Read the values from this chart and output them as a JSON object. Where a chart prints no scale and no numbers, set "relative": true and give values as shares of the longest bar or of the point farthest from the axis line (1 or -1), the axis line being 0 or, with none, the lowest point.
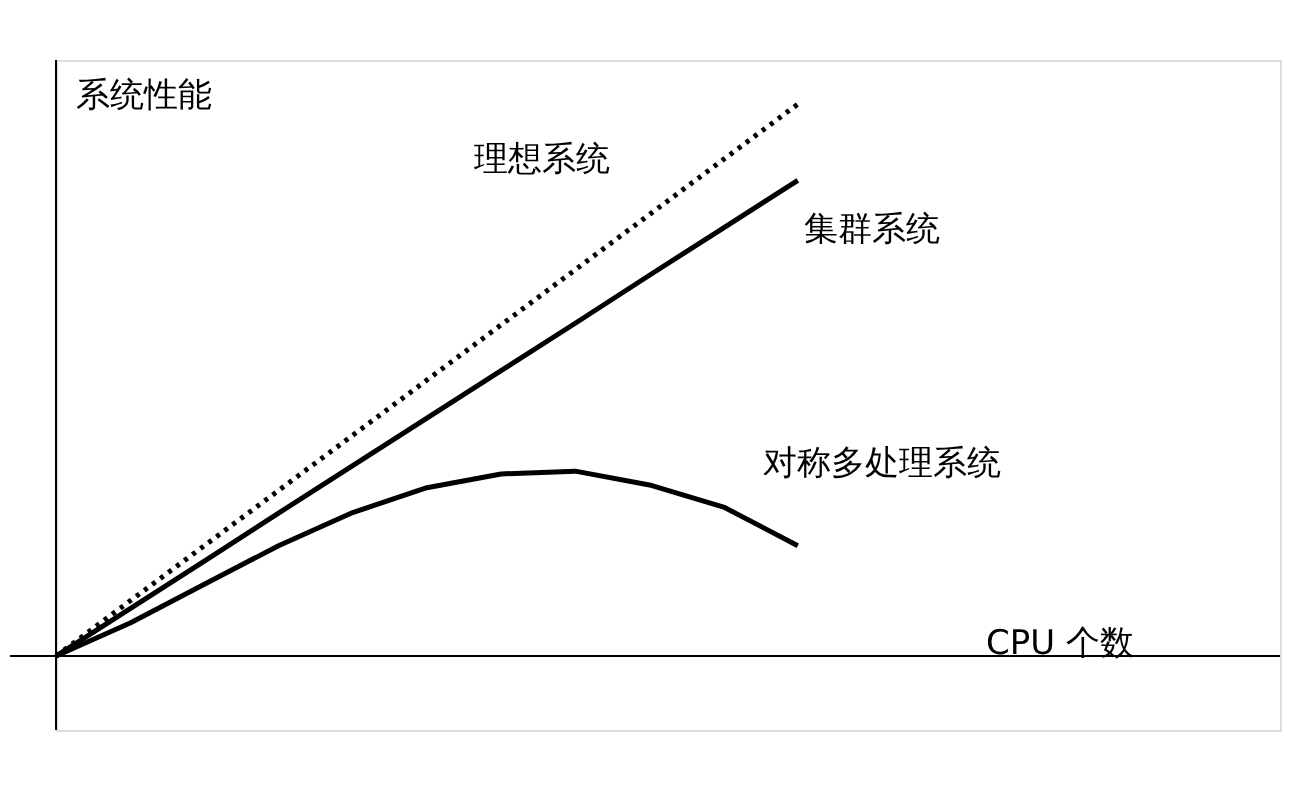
{
  "chart_data": {
    "type": "line",
    "relative": true,
    "xlabel": "CPU 个数",
    "ylabel": "系统性能",
    "legend": false,
    "marker": "none",
    "categories": [
      null,
      null,
      null,
      null,
      null,
      null,
      null,
      null,
      null,
      null,
      null,
      null,
      null,
      null,
      null,
      null,
      null
    ],
    "series": [
      {
        "name": "理想系统",
        "color": "#000000",
        "line_style": "dotted",
        "values": [
          0,
          0.1,
          0.2,
          0.3,
          0.4,
          0.5,
          0.6,
          0.7,
          0.8,
          0.9,
          1,
          null,
          null,
          null,
          null,
          null,
          null
        ]
      },
      {
        "name": "集群系统",
        "color": "#000000",
        "line_style": "solid",
        "values": [
          0,
          0.086,
          0.172,
          0.259,
          0.345,
          0.431,
          0.517,
          0.603,
          0.69,
          0.776,
          0.862,
          null,
          null,
          null,
          null,
          null,
          null
        ]
      },
      {
        "name": "对称多处理系统",
        "color": "#000000",
        "line_style": "solid",
        "values": [
          0,
          0.06,
          0.13,
          0.2,
          0.26,
          0.305,
          0.33,
          0.335,
          0.31,
          0.27,
          0.2,
          null,
          null,
          null,
          null,
          null,
          null
        ]
      }
    ]
  }
}
